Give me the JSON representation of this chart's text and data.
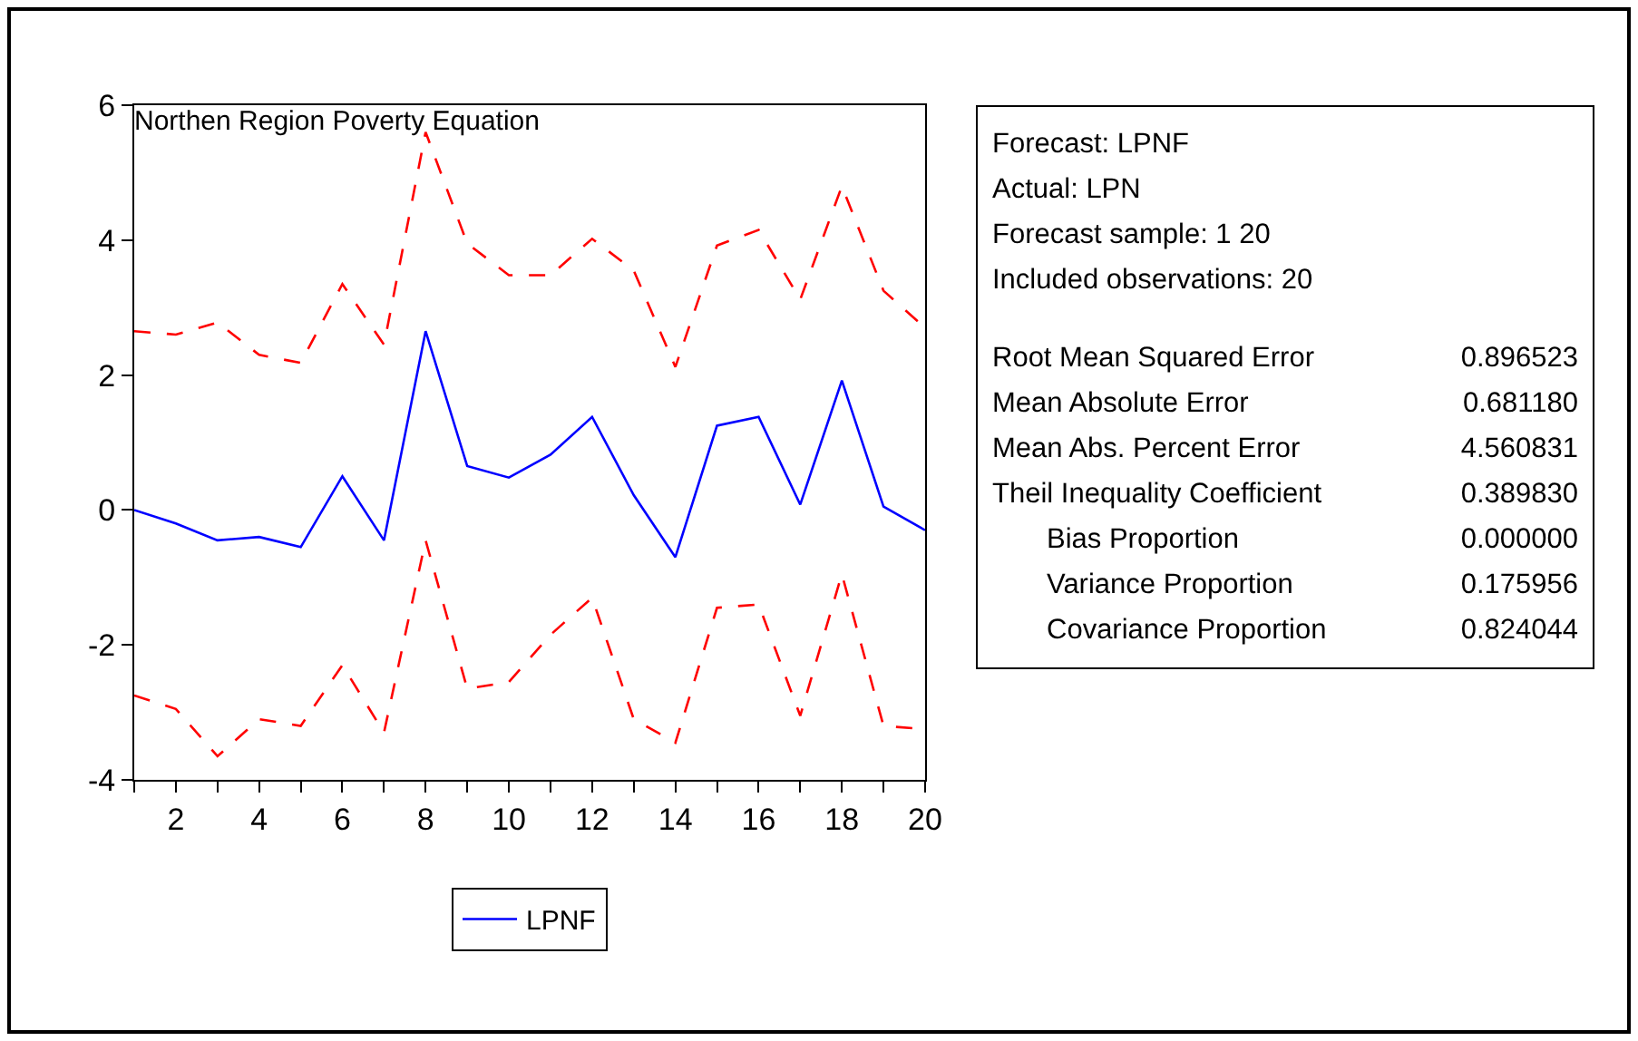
{
  "chart_data": {
    "type": "line",
    "title": "Northen Region Poverty Equation",
    "x": [
      1,
      2,
      3,
      4,
      5,
      6,
      7,
      8,
      9,
      10,
      11,
      12,
      13,
      14,
      15,
      16,
      17,
      18,
      19,
      20
    ],
    "series": [
      {
        "name": "LPNF",
        "color": "#0000ff",
        "line_style": "solid",
        "values": [
          0.0,
          -0.2,
          -0.45,
          -0.4,
          -0.55,
          0.5,
          -0.45,
          2.65,
          0.65,
          0.48,
          0.82,
          1.38,
          0.22,
          -0.7,
          1.25,
          1.38,
          0.08,
          1.92,
          0.05,
          -0.3
        ]
      },
      {
        "color": "#ff0000",
        "line_style": "dashed",
        "values": [
          2.65,
          2.6,
          2.78,
          2.3,
          2.18,
          3.35,
          2.45,
          5.6,
          3.95,
          3.48,
          3.48,
          4.02,
          3.55,
          2.12,
          3.92,
          4.15,
          3.12,
          4.8,
          3.25,
          2.7
        ]
      },
      {
        "color": "#ff0000",
        "line_style": "dashed",
        "values": [
          -2.75,
          -2.95,
          -3.65,
          -3.1,
          -3.2,
          -2.3,
          -3.3,
          -0.45,
          -2.65,
          -2.55,
          -1.85,
          -1.3,
          -3.1,
          -3.45,
          -1.45,
          -1.4,
          -3.05,
          -0.95,
          -3.2,
          -3.25
        ]
      }
    ],
    "xlim": [
      1,
      20
    ],
    "xticks": [
      {
        "value": 1,
        "label": null
      },
      2,
      {
        "value": 3,
        "label": null
      },
      4,
      {
        "value": 5,
        "label": null
      },
      6,
      {
        "value": 7,
        "label": null
      },
      8,
      {
        "value": 9,
        "label": null
      },
      10,
      {
        "value": 11,
        "label": null
      },
      12,
      {
        "value": 13,
        "label": null
      },
      14,
      {
        "value": 15,
        "label": null
      },
      16,
      {
        "value": 17,
        "label": null
      },
      18,
      {
        "value": 19,
        "label": null
      },
      20
    ],
    "ylim": [
      -4,
      6
    ],
    "yticks": [
      -4,
      -2,
      0,
      2,
      4,
      6
    ],
    "grid": false,
    "legend": "bottom",
    "marker": "none",
    "annotations": [
      "Forecast: LPNF",
      "Actual: LPN",
      "Forecast sample: 1 20",
      "Included observations: 20",
      "Root Mean Squared Error",
      "0.896523",
      "Mean Absolute Error",
      "0.681180",
      "Mean Abs. Percent Error",
      "4.560831",
      "Theil Inequality Coefficient",
      "0.389830",
      "Bias Proportion",
      "0.000000",
      "Variance Proportion",
      "0.175956",
      "Covariance Proportion",
      "0.824044"
    ]
  }
}
